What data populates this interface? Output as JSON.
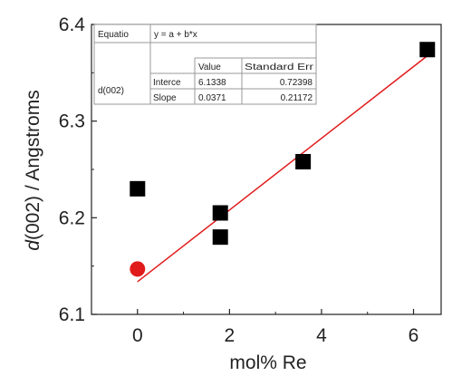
{
  "chart_data": {
    "type": "scatter",
    "xlabel": "mol% Re",
    "ylabel_italic": "d",
    "ylabel_rest": "(002) / Angstroms",
    "xlim": [
      -1.0,
      6.6
    ],
    "ylim": [
      6.1,
      6.4
    ],
    "xticks": [
      0,
      2,
      4,
      6
    ],
    "yticks": [
      6.1,
      6.2,
      6.3,
      6.4
    ],
    "xtick_labels": [
      "0",
      "2",
      "4",
      "6"
    ],
    "ytick_labels": [
      "6.1",
      "6.2",
      "6.3",
      "6.4"
    ],
    "grid": false,
    "colors": {
      "points": "#000000",
      "highlight": "#e11b1b",
      "fit": "#e11b1b"
    },
    "series": [
      {
        "marker": "square",
        "color": "#000000",
        "points": [
          {
            "x": 0.0,
            "y": 6.23
          },
          {
            "x": 1.8,
            "y": 6.205
          },
          {
            "x": 1.8,
            "y": 6.18
          },
          {
            "x": 3.6,
            "y": 6.258
          },
          {
            "x": 6.3,
            "y": 6.374
          }
        ]
      },
      {
        "marker": "circle",
        "color": "#e11b1b",
        "points": [
          {
            "x": 0.0,
            "y": 6.147
          }
        ]
      }
    ],
    "fit_line": {
      "color": "#e11b1b",
      "intercept": 6.1338,
      "slope": 0.0371,
      "x_range": [
        0.0,
        6.3
      ]
    },
    "fit_table": {
      "equation_label": "Equatio",
      "equation": "y = a + b*x",
      "header_value": "Value",
      "header_error": "Standard Err",
      "row_group": "d(002)",
      "rows": [
        {
          "name": "Interce",
          "value": "6.1338",
          "error": "0.72398"
        },
        {
          "name": "Slope",
          "value": "0.0371",
          "error": "0.21172"
        }
      ]
    }
  }
}
